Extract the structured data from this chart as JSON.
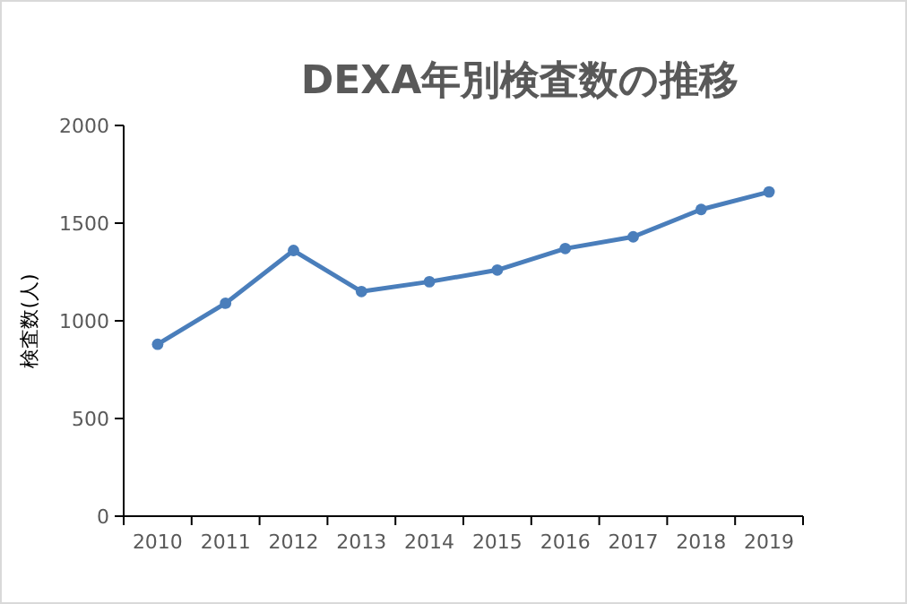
{
  "chart_data": {
    "type": "line",
    "title": "DEXA年別検査数の推移",
    "ylabel": "検査数(人)",
    "categories": [
      "2010",
      "2011",
      "2012",
      "2013",
      "2014",
      "2015",
      "2016",
      "2017",
      "2018",
      "2019"
    ],
    "series": [
      {
        "color": "#4a7ebb",
        "values": [
          880,
          1090,
          1360,
          1150,
          1200,
          1260,
          1370,
          1430,
          1570,
          1660
        ]
      }
    ],
    "ylim": [
      0,
      2000
    ],
    "yticks": [
      0,
      500,
      1000,
      1500,
      2000
    ],
    "grid": false,
    "marker": "circle",
    "line_style": "solid"
  }
}
